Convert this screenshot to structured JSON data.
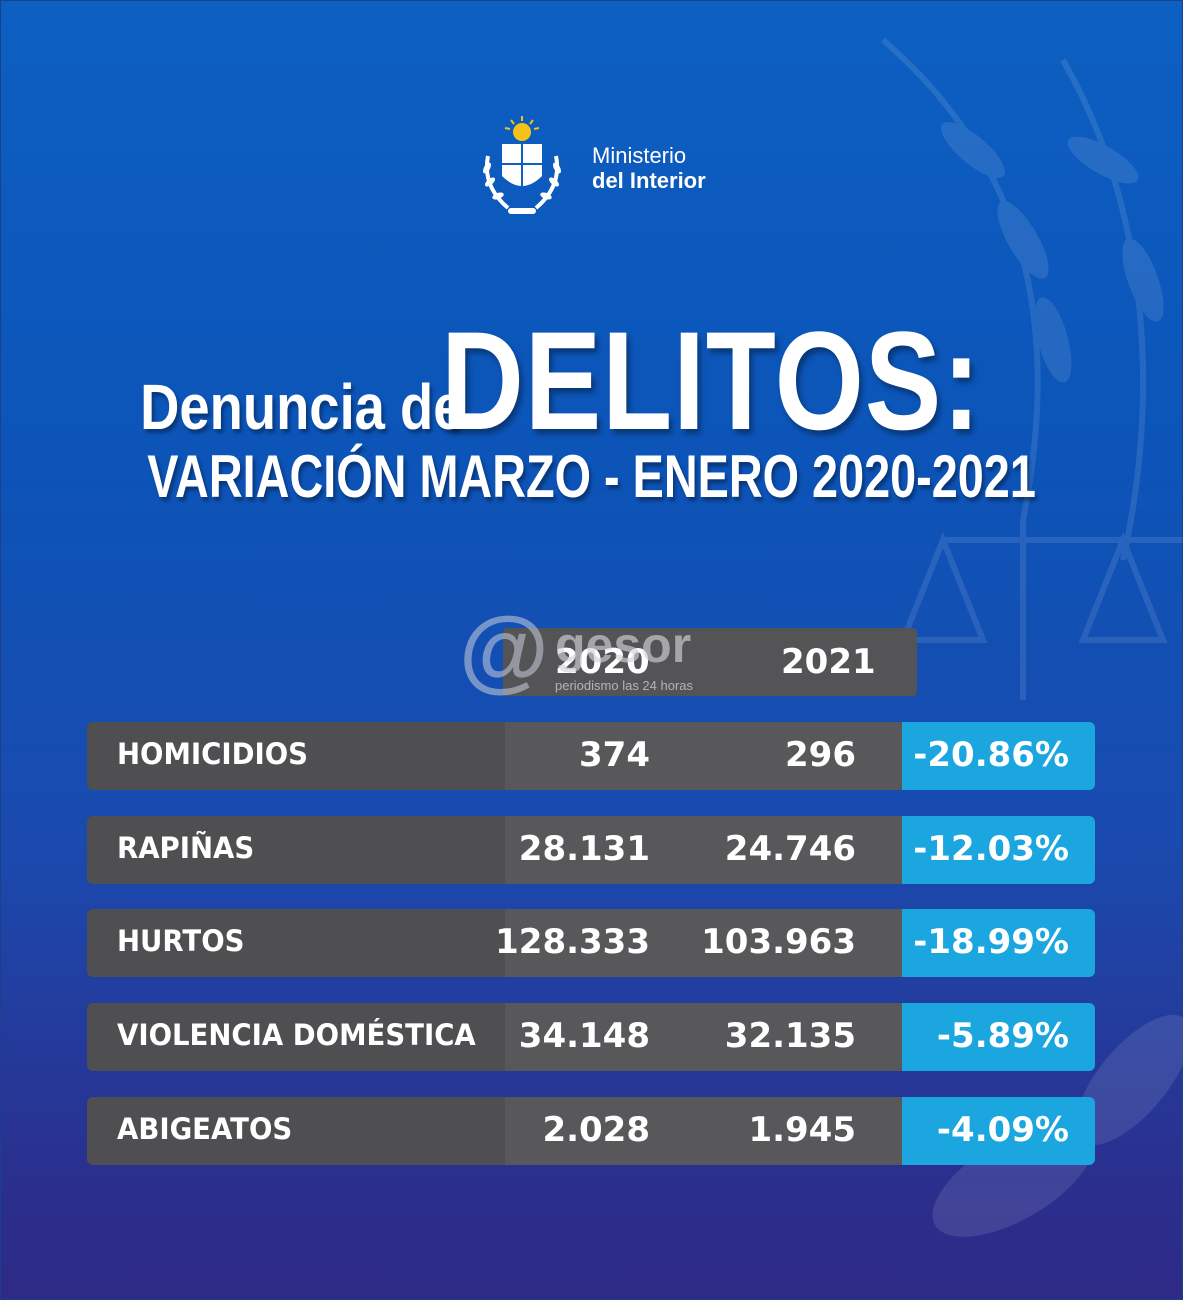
{
  "header": {
    "ministry_line1": "Ministerio",
    "ministry_line2": "del Interior"
  },
  "title": {
    "prefix": "Denuncia de",
    "main": "DELITOS:",
    "subtitle": "VARIACIÓN MARZO - ENERO 2020-2021"
  },
  "watermark": {
    "symbol": "@",
    "name": "gesor",
    "tagline": "periodismo las 24 horas"
  },
  "table": {
    "columns": [
      "2020",
      "2021"
    ],
    "rows": [
      {
        "label": "HOMICIDIOS",
        "v2020": "374",
        "v2021": "296",
        "variation": "-20.86%"
      },
      {
        "label": "RAPIÑAS",
        "v2020": "28.131",
        "v2021": "24.746",
        "variation": "-12.03%"
      },
      {
        "label": "HURTOS",
        "v2020": "128.333",
        "v2021": "103.963",
        "variation": "-18.99%"
      },
      {
        "label": "VIOLENCIA DOMÉSTICA",
        "v2020": "34.148",
        "v2021": "32.135",
        "variation": "-5.89%"
      },
      {
        "label": "ABIGEATOS",
        "v2020": "2.028",
        "v2021": "1.945",
        "variation": "-4.09%"
      }
    ]
  },
  "colors": {
    "background_top": "#0d5fc2",
    "background_bottom": "#2e2a86",
    "row_gray": "#4f4f51",
    "variation_blue": "#1ba6df"
  }
}
